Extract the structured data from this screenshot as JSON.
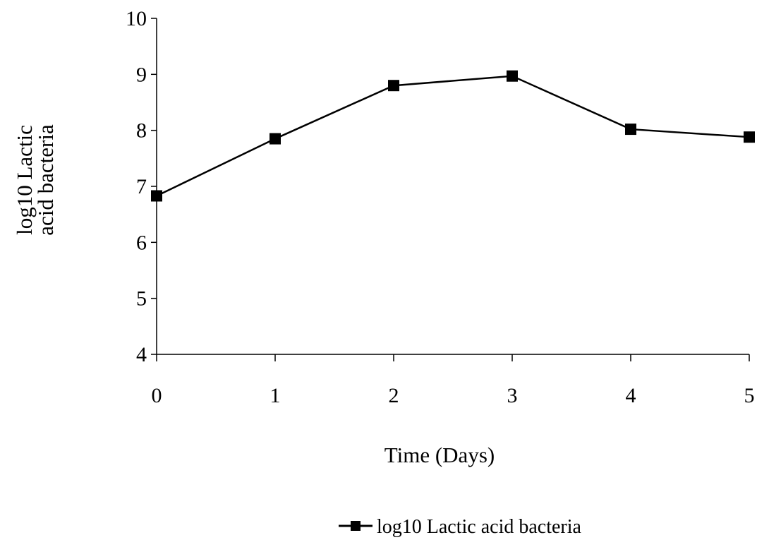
{
  "chart_data": {
    "type": "line",
    "title": "",
    "xlabel": "Time (Days)",
    "ylabel_lines": [
      "log10 Lactic",
      "acid bacteria"
    ],
    "x": [
      0,
      1,
      2,
      3,
      4,
      5
    ],
    "x_tick_labels": [
      "0",
      "1",
      "2",
      "3",
      "4",
      "5"
    ],
    "xlim": [
      0,
      5
    ],
    "ylim": [
      4,
      10
    ],
    "y_ticks": [
      4,
      5,
      6,
      7,
      8,
      9,
      10
    ],
    "y_tick_labels": [
      "4",
      "5",
      "6",
      "7",
      "8",
      "9",
      "10"
    ],
    "grid": false,
    "legend_position": "bottom-center",
    "series": [
      {
        "name": "log10 Lactic acid bacteria",
        "values": [
          6.83,
          7.85,
          8.8,
          8.97,
          8.02,
          7.88
        ],
        "color": "#000000",
        "marker": "square"
      }
    ]
  }
}
